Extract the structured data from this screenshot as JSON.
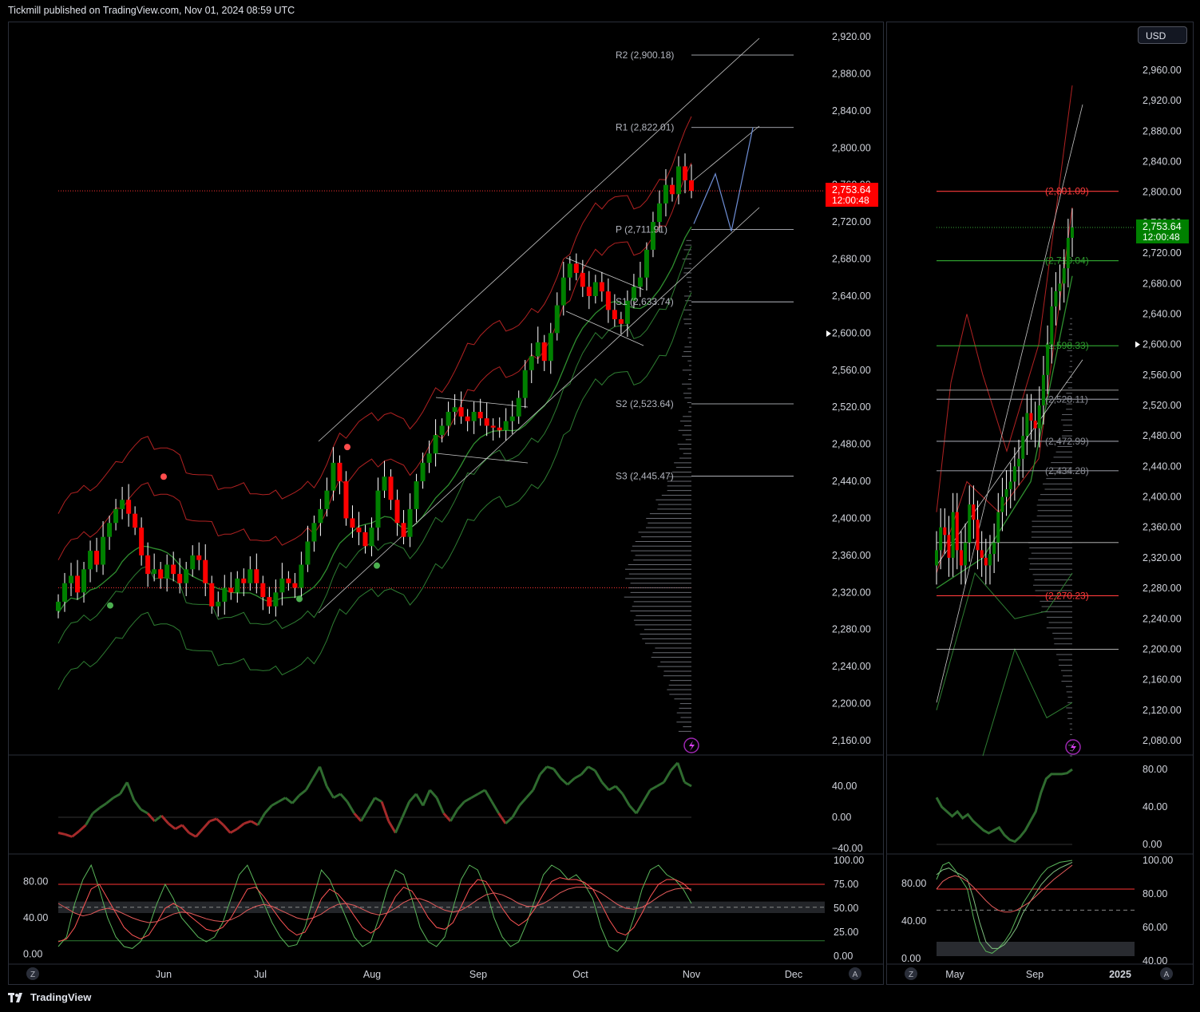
{
  "header": {
    "text": "Tickmill published on TradingView.com, Nov 01, 2024 08:59 UTC"
  },
  "footer": {
    "brand": "TradingView"
  },
  "currency_button": "USD",
  "colors": {
    "up": "#089981",
    "upCandle": "#008000",
    "down": "#ff0000",
    "band_red": "#b22222",
    "band_green": "#2e7d32",
    "osc": "#2f6b2f",
    "grid": "#1e222d"
  },
  "chart_data": [
    {
      "type": "line",
      "name_panel": "main-price",
      "x_ticks": [
        "Jun",
        "Jul",
        "Aug",
        "Sep",
        "Oct",
        "Nov",
        "Dec"
      ],
      "y_ticks": [
        "2,920.00",
        "2,880.00",
        "2,840.00",
        "2,800.00",
        "2,760.00",
        "2,720.00",
        "2,680.00",
        "2,640.00",
        "2,600.00",
        "2,560.00",
        "2,520.00",
        "2,480.00",
        "2,440.00",
        "2,400.00",
        "2,360.00",
        "2,320.00",
        "2,280.00",
        "2,240.00",
        "2,200.00",
        "2,160.00"
      ],
      "ylim": [
        2150,
        2940
      ],
      "last_price": "2,753.64",
      "countdown": "12:00:48",
      "pivots": [
        {
          "label": "R2 (2,900.18)",
          "value": 2900.18
        },
        {
          "label": "R1 (2,822.01)",
          "value": 2822.01
        },
        {
          "label": "P (2,711.91)",
          "value": 2711.91
        },
        {
          "label": "S1 (2,633.74)",
          "value": 2633.74
        },
        {
          "label": "S2 (2,523.64)",
          "value": 2523.64
        },
        {
          "label": "S3 (2,445.47)",
          "value": 2445.47
        }
      ],
      "closes": [
        2310,
        2330,
        2338,
        2320,
        2345,
        2365,
        2350,
        2380,
        2395,
        2410,
        2420,
        2405,
        2390,
        2360,
        2340,
        2345,
        2335,
        2350,
        2340,
        2330,
        2345,
        2360,
        2355,
        2330,
        2305,
        2310,
        2325,
        2320,
        2335,
        2330,
        2345,
        2330,
        2315,
        2305,
        2320,
        2335,
        2330,
        2325,
        2350,
        2375,
        2395,
        2410,
        2430,
        2460,
        2440,
        2400,
        2390,
        2385,
        2370,
        2390,
        2430,
        2445,
        2420,
        2395,
        2380,
        2410,
        2440,
        2460,
        2470,
        2490,
        2500,
        2515,
        2520,
        2510,
        2505,
        2515,
        2508,
        2500,
        2498,
        2495,
        2505,
        2510,
        2530,
        2560,
        2575,
        2590,
        2570,
        2600,
        2630,
        2660,
        2675,
        2665,
        2650,
        2640,
        2655,
        2645,
        2625,
        2615,
        2610,
        2635,
        2650,
        2660,
        2690,
        2720,
        2740,
        2760,
        2750,
        2780,
        2765,
        2753.64
      ],
      "highs_lows_range": [
        2280,
        2790
      ]
    },
    {
      "type": "line",
      "name_panel": "main-oscillator-1",
      "y_ticks": [
        "40.00",
        "0.00",
        "−40.00"
      ],
      "ylim": [
        -45,
        75
      ],
      "values": [
        -20,
        -22,
        -25,
        -18,
        -10,
        5,
        12,
        18,
        25,
        30,
        45,
        22,
        10,
        5,
        -5,
        2,
        -8,
        -15,
        -10,
        -20,
        -25,
        -15,
        -5,
        -2,
        -10,
        -20,
        -15,
        -8,
        -5,
        -10,
        5,
        15,
        20,
        25,
        18,
        28,
        35,
        50,
        65,
        40,
        25,
        30,
        20,
        5,
        -5,
        10,
        25,
        20,
        -5,
        -20,
        0,
        20,
        30,
        15,
        35,
        25,
        5,
        -5,
        10,
        20,
        25,
        30,
        35,
        20,
        5,
        -8,
        0,
        15,
        25,
        35,
        55,
        65,
        62,
        50,
        42,
        50,
        55,
        65,
        60,
        45,
        35,
        40,
        30,
        15,
        5,
        20,
        35,
        40,
        45,
        60,
        70,
        45,
        40
      ],
      "threshold": 0
    },
    {
      "type": "line",
      "name_panel": "main-oscillator-2",
      "y_ticks_left": [
        "80.00",
        "40.00",
        "0.00"
      ],
      "y_ticks_right": [
        "100.00",
        "75.00",
        "50.00",
        "25.00",
        "0.00"
      ],
      "ylim": [
        0,
        100
      ],
      "series": [
        {
          "name": "",
          "values": [
            10,
            20,
            55,
            80,
            95,
            70,
            40,
            20,
            10,
            8,
            15,
            30,
            55,
            75,
            60,
            40,
            30,
            20,
            15,
            20,
            35,
            60,
            85,
            95,
            75,
            55,
            35,
            20,
            10,
            12,
            30,
            60,
            90,
            80,
            60,
            40,
            20,
            10,
            15,
            40,
            70,
            90,
            85,
            60,
            30,
            15,
            10,
            20,
            50,
            80,
            95,
            90,
            70,
            40,
            20,
            10,
            15,
            35,
            60,
            85,
            95,
            90,
            80,
            85,
            75,
            60,
            30,
            10,
            5,
            15,
            40,
            70,
            90,
            95,
            85,
            80,
            70,
            55
          ]
        },
        {
          "name": "",
          "values": [
            15,
            18,
            30,
            50,
            70,
            75,
            60,
            45,
            30,
            22,
            18,
            22,
            35,
            50,
            55,
            50,
            42,
            35,
            28,
            26,
            30,
            40,
            55,
            70,
            72,
            62,
            50,
            38,
            28,
            22,
            25,
            40,
            60,
            70,
            65,
            55,
            42,
            30,
            24,
            30,
            45,
            62,
            72,
            68,
            55,
            40,
            30,
            28,
            35,
            52,
            70,
            80,
            78,
            65,
            50,
            38,
            32,
            38,
            50,
            65,
            78,
            82,
            80,
            80,
            77,
            70,
            55,
            38,
            25,
            22,
            30,
            45,
            62,
            75,
            80,
            80,
            76,
            68
          ]
        },
        {
          "name": "",
          "values": [
            55,
            50,
            45,
            42,
            44,
            48,
            50,
            48,
            44,
            40,
            37,
            35,
            36,
            40,
            44,
            46,
            45,
            42,
            39,
            37,
            36,
            38,
            42,
            48,
            52,
            54,
            52,
            48,
            44,
            40,
            38,
            40,
            44,
            50,
            54,
            55,
            53,
            49,
            45,
            43,
            45,
            50,
            56,
            60,
            60,
            57,
            52,
            48,
            46,
            48,
            53,
            59,
            64,
            66,
            64,
            60,
            55,
            52,
            52,
            55,
            60,
            66,
            70,
            72,
            72,
            70,
            66,
            60,
            54,
            50,
            49,
            51,
            56,
            62,
            67,
            70,
            71,
            70
          ]
        }
      ],
      "bands": [
        80,
        50,
        20
      ]
    },
    {
      "type": "line",
      "name_panel": "right-price",
      "x_ticks": [
        "May",
        "Sep",
        "2025"
      ],
      "y_ticks": [
        "2,960.00",
        "2,920.00",
        "2,880.00",
        "2,840.00",
        "2,800.00",
        "2,760.00",
        "2,720.00",
        "2,680.00",
        "2,640.00",
        "2,600.00",
        "2,560.00",
        "2,520.00",
        "2,480.00",
        "2,440.00",
        "2,400.00",
        "2,360.00",
        "2,320.00",
        "2,280.00",
        "2,240.00",
        "2,200.00",
        "2,160.00",
        "2,120.00",
        "2,080.00"
      ],
      "ylim": [
        2060,
        2980
      ],
      "last_price": "2,753.64",
      "countdown": "12:00:48",
      "levels": [
        {
          "label": "(2,801.09)",
          "value": 2801.09,
          "color": "red"
        },
        {
          "label": "(2,710.04)",
          "value": 2710.04,
          "color": "green"
        },
        {
          "label": "(2,598.33)",
          "value": 2598.33,
          "color": "green"
        },
        {
          "label": "(2,528.11)",
          "value": 2528.11,
          "color": "gray"
        },
        {
          "label": "(2,472.99)",
          "value": 2472.99,
          "color": "gray"
        },
        {
          "label": "(2,434.28)",
          "value": 2434.28,
          "color": "gray"
        },
        {
          "label": "(2,270.23)",
          "value": 2270.23,
          "color": "red"
        }
      ],
      "closes": [
        2330,
        2360,
        2350,
        2320,
        2380,
        2330,
        2310,
        2340,
        2390,
        2370,
        2330,
        2320,
        2310,
        2325,
        2340,
        2380,
        2400,
        2410,
        2420,
        2440,
        2450,
        2480,
        2510,
        2500,
        2490,
        2520,
        2560,
        2600,
        2650,
        2670,
        2680,
        2700,
        2740,
        2753.64
      ]
    },
    {
      "type": "line",
      "name_panel": "right-oscillator-1",
      "y_ticks": [
        "80.00",
        "40.00",
        "0.00"
      ],
      "ylim": [
        -5,
        85
      ],
      "values": [
        50,
        40,
        35,
        30,
        35,
        28,
        32,
        25,
        20,
        15,
        12,
        15,
        18,
        10,
        5,
        3,
        8,
        15,
        25,
        35,
        55,
        70,
        75,
        75,
        75,
        76,
        80
      ]
    },
    {
      "type": "line",
      "name_panel": "right-oscillator-2",
      "y_ticks_left": [
        "80.00",
        "40.00",
        "0.00"
      ],
      "y_ticks_right": [
        "100.00",
        "80.00",
        "60.00",
        "40.00"
      ],
      "ylim": [
        0,
        100
      ],
      "series": [
        {
          "name": "",
          "values": [
            80,
            95,
            98,
            90,
            80,
            70,
            40,
            15,
            5,
            3,
            8,
            15,
            25,
            40,
            55,
            65,
            75,
            85,
            92,
            95,
            98,
            99,
            100
          ]
        },
        {
          "name": "",
          "values": [
            85,
            90,
            92,
            88,
            85,
            80,
            60,
            35,
            15,
            8,
            8,
            12,
            20,
            30,
            45,
            55,
            65,
            75,
            82,
            88,
            92,
            95,
            98
          ]
        },
        {
          "name": "",
          "values": [
            70,
            78,
            82,
            84,
            82,
            78,
            72,
            65,
            58,
            52,
            48,
            46,
            46,
            48,
            52,
            56,
            62,
            68,
            74,
            80,
            85,
            90,
            95
          ]
        }
      ]
    }
  ]
}
